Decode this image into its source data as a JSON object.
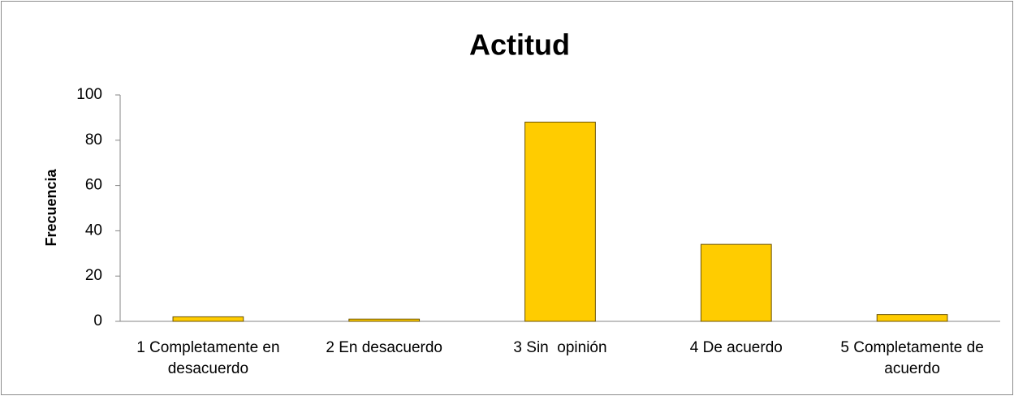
{
  "chart_data": {
    "type": "bar",
    "title": "Actitud",
    "y_label": "Frecuencia",
    "categories": [
      "1 Completamente en desacuerdo",
      "2 En desacuerdo",
      "3 Sin  opinión",
      "4 De acuerdo",
      "5 Completamente de acuerdo"
    ],
    "values": [
      2,
      1,
      88,
      34,
      3
    ],
    "color": "#ffcc00",
    "ylim": [
      0,
      100
    ],
    "yticks": [
      0,
      20,
      40,
      60,
      80,
      100
    ],
    "grid": false
  }
}
